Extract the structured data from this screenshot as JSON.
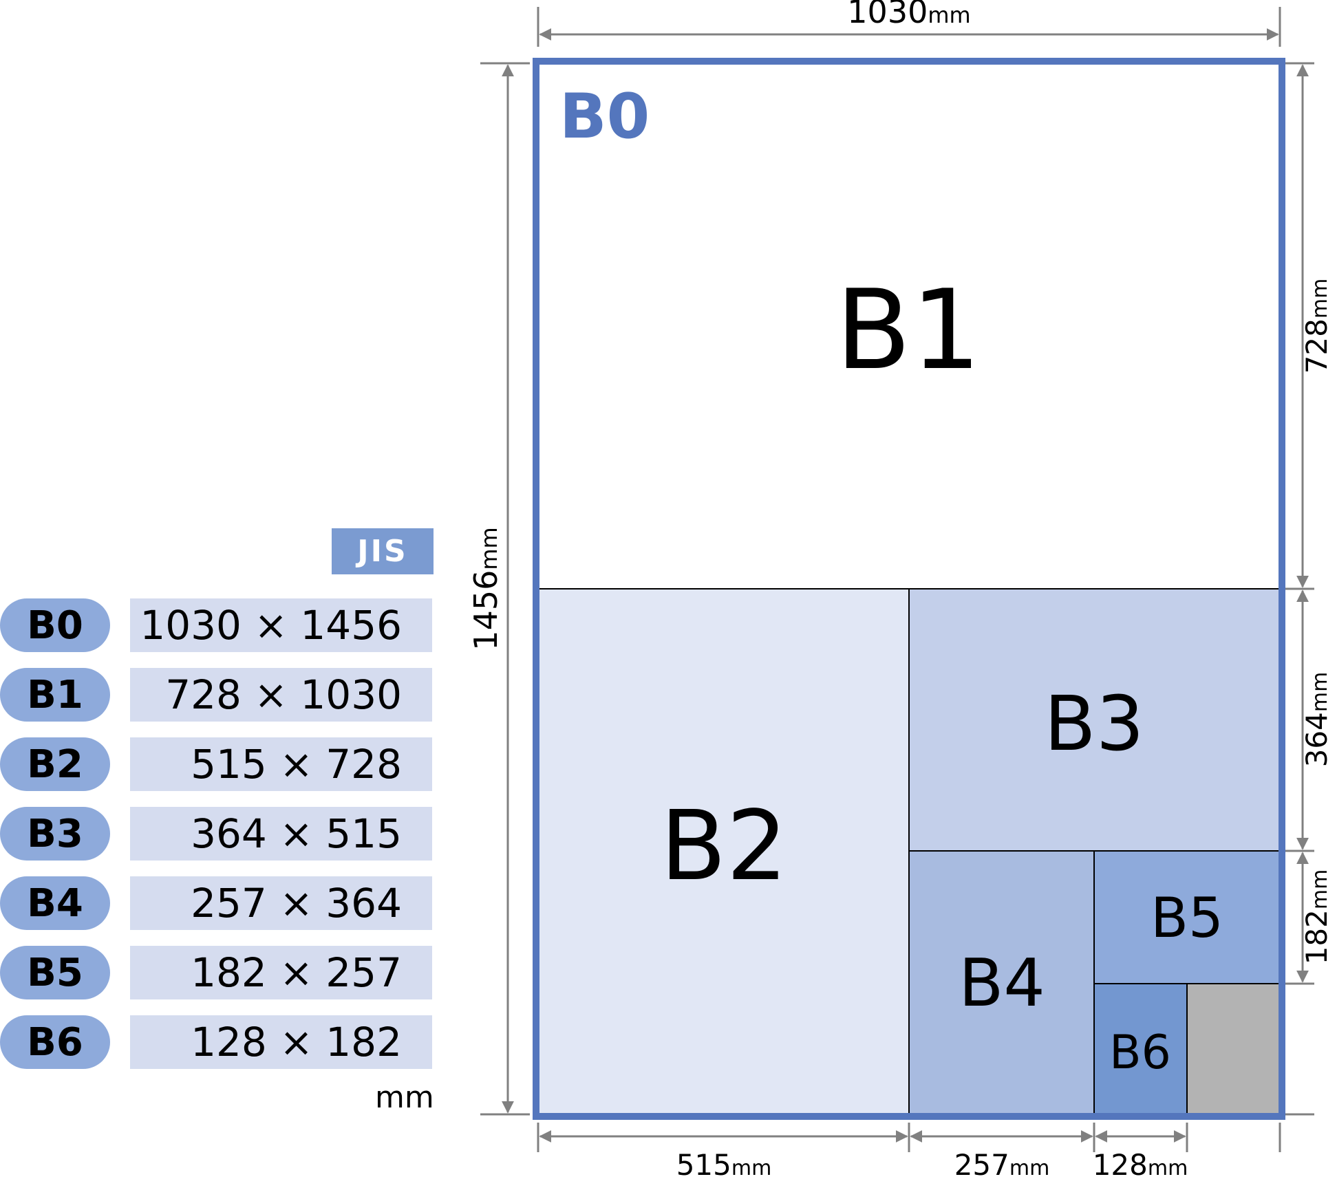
{
  "outer_sheet": {
    "label": "B0",
    "width_label": "1030",
    "height_label": "1456"
  },
  "unit": "mm",
  "subdivisions": [
    {
      "label": "B1"
    },
    {
      "label": "B2"
    },
    {
      "label": "B3"
    },
    {
      "label": "B4"
    },
    {
      "label": "B5"
    },
    {
      "label": "B6"
    }
  ],
  "bottom_dimensions": [
    "515",
    "257",
    "128"
  ],
  "right_dimensions": [
    "728",
    "364",
    "182"
  ],
  "table": {
    "standard": "JIS",
    "unit": "mm",
    "rows": [
      {
        "size": "B0",
        "dims": "1030 × 1456"
      },
      {
        "size": "B1",
        "dims": "728 × 1030"
      },
      {
        "size": "B2",
        "dims": "515 × 728"
      },
      {
        "size": "B3",
        "dims": "364 × 515"
      },
      {
        "size": "B4",
        "dims": "257 × 364"
      },
      {
        "size": "B5",
        "dims": "182 × 257"
      },
      {
        "size": "B6",
        "dims": "128 × 182"
      }
    ]
  },
  "colors": {
    "outline": "#5476bd",
    "b2": "#e1e7f5",
    "b3": "#c3cfea",
    "b4": "#a8bbe0",
    "b5": "#8eaadb",
    "b6": "#7397d0",
    "remainder": "#b3b3b3",
    "dimension_line": "#808080"
  }
}
